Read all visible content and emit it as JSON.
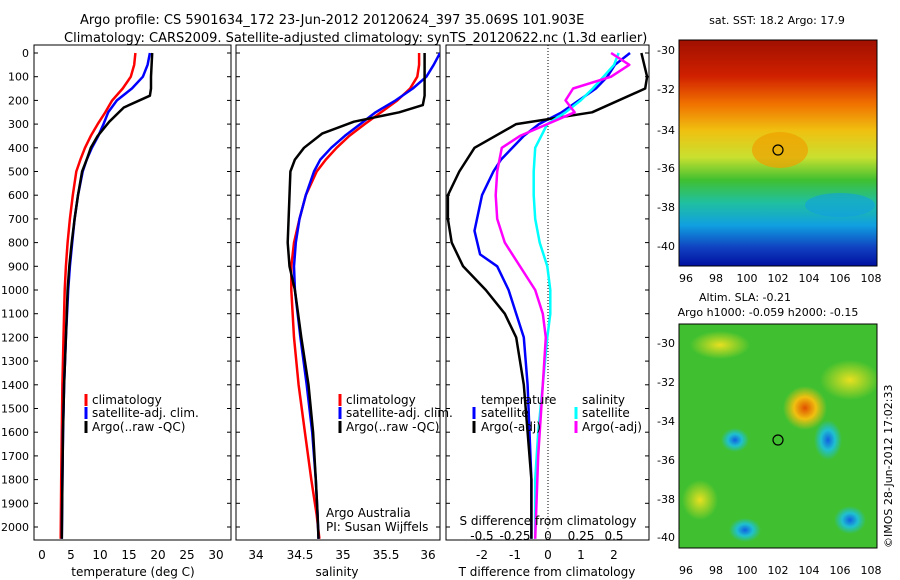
{
  "header": {
    "line1": "Argo profile: CS 5901634_172 23-Jun-2012 20120624_397 35.069S 101.903E",
    "line2": "Climatology: CARS2009. Satellite-adjusted climatology: synTS_20120622.nc (1.3d earlier)"
  },
  "depth_ticks": [
    "0",
    "100",
    "200",
    "300",
    "400",
    "500",
    "600",
    "700",
    "800",
    "900",
    "1000",
    "1100",
    "1200",
    "1300",
    "1400",
    "1500",
    "1600",
    "1700",
    "1800",
    "1900",
    "2000"
  ],
  "panels": {
    "temperature": {
      "xlabel": "temperature (deg C)",
      "xticks": [
        "0",
        "5",
        "10",
        "15",
        "20",
        "25",
        "30"
      ],
      "legend": [
        "climatology",
        "satellite-adj. clim.",
        "Argo(..raw -QC)"
      ]
    },
    "salinity": {
      "xlabel": "salinity",
      "xticks": [
        "34",
        "34.5",
        "35",
        "35.5",
        "36"
      ],
      "legend": [
        "climatology",
        "satellite-adj. clim.",
        "Argo(..raw -QC)"
      ],
      "note1": "Argo Australia",
      "note2": "PI: Susan Wijffels"
    },
    "difference": {
      "xlabel": "T difference from climatology",
      "xticks": [
        "-2",
        "-1",
        "0",
        "1",
        "2"
      ],
      "top_label": "S difference from climatology",
      "top_ticks": [
        "-0.5",
        "-0.25",
        "0",
        "0.25",
        "0.5"
      ],
      "legend_temp_title": "temperature",
      "legend_sal_title": "salinity",
      "legend_temp": [
        "satellite",
        "Argo(-adj)"
      ],
      "legend_sal": [
        "satellite",
        "Argo(-adj)"
      ]
    }
  },
  "maps": {
    "sst_title": "sat. SST: 18.2 Argo: 17.9",
    "sla_title1": "Altim. SLA: -0.21",
    "sla_title2": "Argo h1000: -0.059 h2000: -0.15",
    "lat_ticks": [
      "-30",
      "-32",
      "-34",
      "-36",
      "-38",
      "-40"
    ],
    "lon_ticks": [
      "96",
      "98",
      "100",
      "102",
      "104",
      "106",
      "108"
    ],
    "stamp": "©IMOS 28-Jun-2012 17:02:33"
  },
  "colors": {
    "climatology": "#ff0000",
    "satellite": "#0000ff",
    "argo": "#000000",
    "sal_satellite": "#00ffff",
    "sal_argo": "#ff00ff"
  },
  "chart_data": [
    {
      "type": "line",
      "x_label": "temperature (deg C)",
      "y_label": "",
      "xlim": [
        -2,
        32
      ],
      "ylim": [
        2100,
        0
      ],
      "series": [
        {
          "name": "climatology",
          "x": [
            15.5,
            15.3,
            14.7,
            13.3,
            11.5,
            10.3,
            9.0,
            7.8,
            6.8,
            6.0,
            5.3,
            4.7,
            4.2,
            3.8,
            3.5,
            3.3,
            3.1,
            2.9,
            2.8,
            2.7,
            2.6
          ],
          "y": [
            0,
            50,
            100,
            150,
            200,
            250,
            300,
            350,
            400,
            450,
            500,
            600,
            700,
            800,
            900,
            1000,
            1200,
            1400,
            1600,
            1800,
            2050
          ]
        },
        {
          "name": "satellite-adj. clim.",
          "x": [
            18.0,
            17.6,
            16.8,
            14.9,
            12.3,
            10.8,
            10.0,
            9.1,
            8.0,
            7.1,
            6.4,
            5.6,
            5.0,
            4.6,
            4.2,
            3.9,
            3.5,
            3.2,
            3.0,
            2.9,
            2.8
          ],
          "y": [
            0,
            50,
            100,
            150,
            200,
            250,
            300,
            350,
            400,
            450,
            500,
            600,
            700,
            800,
            900,
            1000,
            1200,
            1400,
            1600,
            1800,
            2050
          ]
        },
        {
          "name": "Argo(..raw -QC)",
          "x": [
            18.4,
            18.3,
            18.2,
            18.2,
            18.0,
            13.5,
            11.0,
            9.0,
            7.8,
            7.1,
            6.3,
            5.6,
            5.0,
            4.5,
            4.1,
            3.8,
            3.5,
            3.2,
            3.0,
            2.9,
            2.8
          ],
          "y": [
            0,
            50,
            100,
            150,
            180,
            230,
            290,
            350,
            400,
            450,
            500,
            600,
            700,
            800,
            900,
            1000,
            1200,
            1400,
            1600,
            1800,
            2050
          ]
        }
      ]
    },
    {
      "type": "line",
      "x_label": "salinity",
      "y_label": "",
      "xlim": [
        33.8,
        36.05
      ],
      "ylim": [
        2100,
        0
      ],
      "series": [
        {
          "name": "climatology",
          "x": [
            35.82,
            35.82,
            35.8,
            35.72,
            35.58,
            35.4,
            35.22,
            35.05,
            34.91,
            34.79,
            34.69,
            34.57,
            34.5,
            34.44,
            34.41,
            34.41,
            34.44,
            34.49,
            34.56,
            34.63,
            34.69,
            34.72
          ],
          "y": [
            0,
            50,
            100,
            150,
            200,
            250,
            300,
            350,
            400,
            450,
            500,
            600,
            700,
            800,
            900,
            1000,
            1200,
            1400,
            1600,
            1800,
            1950,
            2050
          ]
        },
        {
          "name": "satellite-adj. clim.",
          "x": [
            36.05,
            35.98,
            35.9,
            35.75,
            35.56,
            35.34,
            35.17,
            35.0,
            34.85,
            34.73,
            34.66,
            34.57,
            34.5,
            34.46,
            34.44,
            34.45,
            34.51,
            34.58,
            34.64,
            34.68,
            34.7,
            34.71
          ],
          "y": [
            0,
            50,
            100,
            150,
            200,
            250,
            300,
            350,
            400,
            450,
            500,
            600,
            700,
            800,
            900,
            1000,
            1200,
            1400,
            1600,
            1800,
            1950,
            2050
          ]
        },
        {
          "name": "Argo(..raw -QC)",
          "x": [
            35.88,
            35.88,
            35.88,
            35.86,
            35.6,
            35.1,
            34.75,
            34.55,
            34.45,
            34.4,
            34.39,
            34.38,
            34.37,
            34.39,
            34.45,
            34.52,
            34.6,
            34.65,
            34.68,
            34.7,
            34.71
          ],
          "y": [
            0,
            100,
            180,
            220,
            250,
            290,
            340,
            400,
            450,
            500,
            600,
            700,
            800,
            900,
            1000,
            1200,
            1400,
            1600,
            1800,
            1950,
            2050
          ]
        }
      ]
    },
    {
      "type": "line",
      "x_label": "T difference from climatology",
      "y_label": "",
      "xlim": [
        -2.35,
        3.0
      ],
      "ylim": [
        2100,
        0
      ],
      "series": [
        {
          "name": "temperature satellite",
          "x": [
            2.5,
            2.1,
            1.9,
            1.6,
            0.7,
            0.1,
            -0.3,
            -0.6,
            -0.9,
            -1.1,
            -1.4,
            -1.6,
            -1.45,
            -1.0,
            -0.7,
            -0.5,
            -0.3,
            -0.2,
            -0.15,
            -0.1,
            -0.1
          ],
          "y": [
            0,
            50,
            100,
            150,
            250,
            300,
            350,
            400,
            450,
            500,
            600,
            750,
            850,
            900,
            1000,
            1100,
            1200,
            1400,
            1600,
            1800,
            2050
          ]
        },
        {
          "name": "temperature Argo(-adj)",
          "x": [
            2.8,
            2.95,
            2.9,
            1.5,
            -0.5,
            -1.6,
            -2.0,
            -2.3,
            -2.3,
            -2.2,
            -1.9,
            -1.3,
            -0.8,
            -0.5,
            -0.3,
            -0.2,
            -0.1,
            -0.1
          ],
          "y": [
            0,
            100,
            150,
            250,
            300,
            400,
            500,
            600,
            700,
            800,
            900,
            1000,
            1100,
            1200,
            1400,
            1600,
            1800,
            2050
          ]
        },
        {
          "name": "salinity satellite",
          "x": [
            0.55,
            0.52,
            0.45,
            0.38,
            0.3,
            0.2,
            0.08,
            0.0,
            -0.01,
            -0.01,
            0.0,
            0.03,
            0.08,
            0.1,
            0.1,
            0.08,
            0.05,
            0.02,
            0.0,
            0.0
          ],
          "y": [
            0,
            50,
            100,
            150,
            200,
            250,
            300,
            400,
            500,
            600,
            700,
            800,
            900,
            1000,
            1100,
            1200,
            1400,
            1600,
            1800,
            2050
          ]
        },
        {
          "name": "salinity Argo(-adj)",
          "x": [
            0.5,
            0.62,
            0.5,
            0.25,
            0.2,
            0.26,
            -0.1,
            -0.22,
            -0.25,
            -0.26,
            -0.25,
            -0.2,
            -0.1,
            0.0,
            0.05,
            0.07,
            0.05,
            0.02,
            0.0
          ],
          "y": [
            0,
            50,
            100,
            150,
            200,
            250,
            350,
            400,
            500,
            600,
            700,
            800,
            900,
            1000,
            1100,
            1200,
            1400,
            1700,
            2050
          ]
        }
      ]
    }
  ]
}
